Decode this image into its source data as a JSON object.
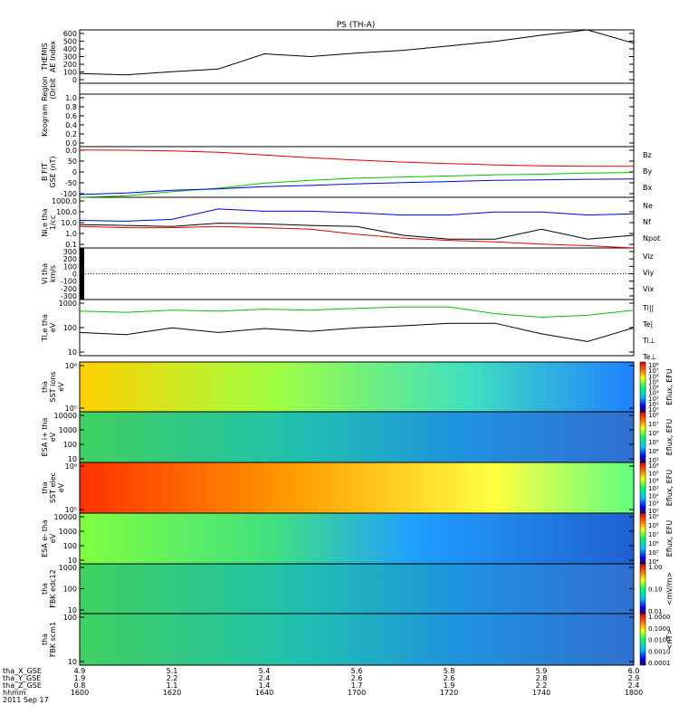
{
  "title": "PS (TH-A)",
  "xaxis": {
    "ticks": [
      "1600",
      "1620",
      "1640",
      "1700",
      "1720",
      "1740",
      "1800"
    ],
    "row_labels": [
      "tha_X_GSE",
      "tha_Y_GSE",
      "tha_Z_GSE",
      "hhmm",
      "2011 Sep 17"
    ],
    "orbit_rows": [
      [
        "4.9",
        "5.1",
        "5.4",
        "5.6",
        "5.8",
        "5.9",
        "6.0"
      ],
      [
        "1.9",
        "2.2",
        "2.4",
        "2.6",
        "2.6",
        "2.8",
        "2.9"
      ],
      [
        "0.8",
        "1.1",
        "1.4",
        "1.7",
        "1.9",
        "2.2",
        "2.4"
      ]
    ]
  },
  "panels": [
    {
      "id": "ae",
      "ylabel": [
        "THEMIS",
        "AE Index"
      ],
      "ticks": [
        "600",
        "500",
        "400",
        "300",
        "200",
        "100",
        "0"
      ]
    },
    {
      "id": "roi",
      "ylabel": [
        "Region",
        "(Orbit"
      ],
      "ticks": []
    },
    {
      "id": "keo",
      "ylabel": [
        "Keogram"
      ],
      "ticks": [
        "1.0",
        "0.8",
        "0.6",
        "0.4",
        "0.2",
        "0.0"
      ]
    },
    {
      "id": "bfgm",
      "ylabel": [
        "B FIT",
        "GSE (nT)"
      ],
      "ticks": [
        "0.0",
        "50",
        "0",
        "-50",
        "-100"
      ],
      "legend": [
        {
          "label": "Bz",
          "color": "#e00000"
        },
        {
          "label": "By",
          "color": "#00c000"
        },
        {
          "label": "Bx",
          "color": "#0000e0"
        }
      ]
    },
    {
      "id": "dens",
      "ylabel": [
        "Ni,e tha",
        "1/cc"
      ],
      "ticks": [
        "1000.0",
        "100.0",
        "10.0",
        "1.0",
        "0.1"
      ],
      "legend": [
        {
          "label": "Ne",
          "color": "#e00000"
        },
        {
          "label": "Nf",
          "color": "#000000"
        },
        {
          "label": "Npot",
          "color": "#0000e0"
        }
      ]
    },
    {
      "id": "vel",
      "ylabel": [
        "Vi tha",
        "km/s"
      ],
      "ticks": [
        "300",
        "200",
        "100",
        "0",
        "-100",
        "-200",
        "-300"
      ],
      "legend": [
        {
          "label": "Viz",
          "color": "#e00000"
        },
        {
          "label": "Viy",
          "color": "#00c000"
        },
        {
          "label": "Vix",
          "color": "#0000e0"
        }
      ]
    },
    {
      "id": "temp",
      "ylabel": [
        "Ti,e tha",
        "eV"
      ],
      "ticks": [
        "1000",
        "100",
        "10"
      ],
      "legend": [
        {
          "label": "Ti||",
          "color": "#00c000"
        },
        {
          "label": "Te|",
          "color": "#000000"
        },
        {
          "label": "Ti⊥",
          "color": "#0000e0"
        },
        {
          "label": "Te⊥",
          "color": "#e00000"
        }
      ]
    },
    {
      "id": "sst_i",
      "ylabel": [
        "tha",
        "SST ions",
        "eV"
      ],
      "ticks": [
        "10⁶",
        "10⁵"
      ],
      "cbar": [
        "10⁸",
        "10⁷",
        "10⁶",
        "10⁵",
        "10⁴",
        "10³",
        "10²",
        "10¹",
        "10⁰"
      ],
      "clabel": "Eflux, EFU"
    },
    {
      "id": "esa_i",
      "ylabel": [
        "ESA i+ tha",
        "eV"
      ],
      "ticks": [
        "10000",
        "1000",
        "100",
        "10"
      ],
      "cbar": [
        "10⁸",
        "10⁷",
        "10⁶",
        "10⁵",
        "10⁴",
        "10³"
      ],
      "clabel": "Eflux, EFU"
    },
    {
      "id": "sst_e",
      "ylabel": [
        "tha",
        "SST elec",
        "eV"
      ],
      "ticks": [
        "10⁶",
        "10⁵"
      ],
      "cbar": [
        "10⁶",
        "10⁵",
        "10⁴",
        "10³",
        "10²",
        "10¹",
        "10⁰"
      ],
      "clabel": "Eflux, EFU"
    },
    {
      "id": "esa_e",
      "ylabel": [
        "ESA e- tha",
        "eV"
      ],
      "ticks": [
        "10000",
        "1000",
        "100",
        "10"
      ],
      "cbar": [
        "10⁹",
        "10⁸",
        "10⁷",
        "10⁶",
        "10⁵",
        "10⁴"
      ],
      "clabel": "Eflux, EFU"
    },
    {
      "id": "fbk_e",
      "ylabel": [
        "tha",
        "FBK edc12"
      ],
      "ticks": [
        "1000",
        "100",
        "10"
      ],
      "cbar": [
        "1.00",
        "0.10",
        "0.01"
      ],
      "clabel": "<mV/m>"
    },
    {
      "id": "fbk_b",
      "ylabel": [
        "tha",
        "FBK scm1"
      ],
      "ticks": [
        "100",
        "10"
      ],
      "cbar": [
        "1.0000",
        "0.1000",
        "0.0100",
        "0.0010",
        "0.0001"
      ],
      "clabel": "<nT>"
    }
  ],
  "chart_data": {
    "type": "line",
    "title": "PS (TH-A)",
    "x": [
      0,
      10,
      20,
      30,
      40,
      50,
      60,
      70,
      80,
      90,
      100,
      110,
      120
    ],
    "x_tick_labels": [
      "1600",
      "1620",
      "1640",
      "1700",
      "1720",
      "1740",
      "1800"
    ],
    "series": [
      {
        "name": "THEMIS AE Index",
        "values": [
          110,
          95,
          130,
          160,
          330,
          300,
          340,
          370,
          420,
          470,
          540,
          600,
          450
        ]
      },
      {
        "name": "Bz",
        "values": [
          48,
          47,
          45,
          40,
          30,
          20,
          12,
          5,
          0,
          -5,
          -8,
          -10,
          -10
        ]
      },
      {
        "name": "By",
        "values": [
          -120,
          -115,
          -100,
          -88,
          -70,
          -60,
          -52,
          -48,
          -44,
          -40,
          -38,
          -34,
          -32
        ]
      },
      {
        "name": "Bx",
        "values": [
          -110,
          -105,
          -95,
          -90,
          -82,
          -78,
          -72,
          -68,
          -64,
          -60,
          -58,
          -56,
          -55
        ]
      },
      {
        "name": "Ne",
        "values": [
          5,
          4,
          4,
          5,
          4,
          3,
          1.2,
          0.6,
          0.4,
          0.3,
          0.2,
          0.15,
          0.1
        ]
      },
      {
        "name": "Nf",
        "values": [
          7,
          6,
          5,
          9,
          8,
          6,
          5,
          1,
          0.5,
          0.5,
          3,
          0.5,
          1
        ]
      },
      {
        "name": "Npot",
        "values": [
          15,
          13,
          18,
          120,
          80,
          80,
          60,
          40,
          40,
          70,
          70,
          40,
          50
        ]
      },
      {
        "name": "Ti||",
        "values": [
          800,
          700,
          900,
          800,
          1000,
          900,
          1100,
          1300,
          1300,
          600,
          400,
          500,
          900
        ]
      },
      {
        "name": "Te|",
        "values": [
          70,
          55,
          120,
          70,
          110,
          80,
          120,
          150,
          200,
          200,
          60,
          25,
          120
        ]
      }
    ],
    "xlabel": "hhmm",
    "ylim_ae": [
      0,
      600
    ]
  }
}
